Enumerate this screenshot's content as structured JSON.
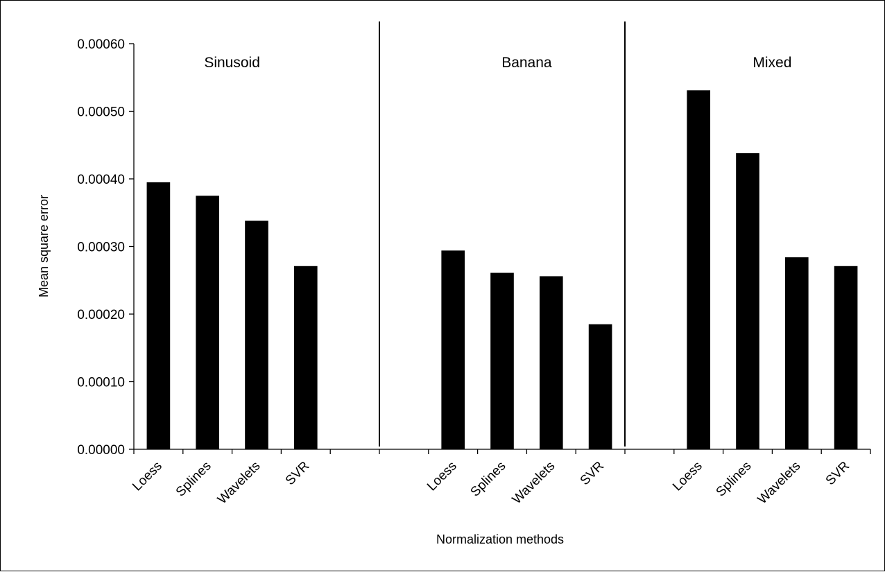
{
  "chart_data": {
    "type": "bar",
    "xlabel": "Normalization methods",
    "ylabel": "Mean square error",
    "ylim": [
      0,
      0.0006
    ],
    "yticks": [
      "0.00000",
      "0.00010",
      "0.00020",
      "0.00030",
      "0.00040",
      "0.00050",
      "0.00060"
    ],
    "grid": false,
    "legend": "none",
    "bar_color": "#000000",
    "categories": [
      "Loess",
      "Splines",
      "Wavelets",
      "SVR"
    ],
    "groups": [
      {
        "name": "Sinusoid",
        "categories": [
          "Loess",
          "Splines",
          "Wavelets",
          "SVR"
        ],
        "values": [
          0.000395,
          0.000375,
          0.000338,
          0.000271
        ]
      },
      {
        "name": "Banana",
        "categories": [
          "Loess",
          "Splines",
          "Wavelets",
          "SVR"
        ],
        "values": [
          0.000294,
          0.000261,
          0.000256,
          0.000185
        ]
      },
      {
        "name": "Mixed",
        "categories": [
          "Loess",
          "Splines",
          "Wavelets",
          "SVR"
        ],
        "values": [
          0.000531,
          0.000438,
          0.000284,
          0.000271
        ]
      }
    ]
  }
}
